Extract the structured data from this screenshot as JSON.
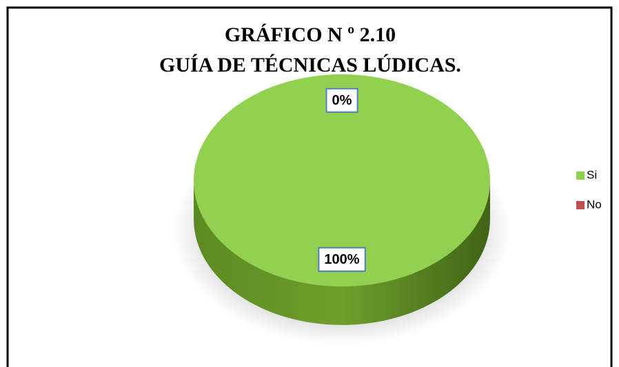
{
  "chart_data": {
    "type": "pie",
    "title": "GRÁFICO N º 2.10",
    "subtitle": "GUÍA DE TÉCNICAS LÚDICAS.",
    "categories": [
      "Si",
      "No"
    ],
    "values": [
      100,
      0
    ],
    "value_labels": [
      "100%",
      "0%"
    ],
    "colors": [
      "#92d050",
      "#c0504d"
    ],
    "legend": "right"
  }
}
